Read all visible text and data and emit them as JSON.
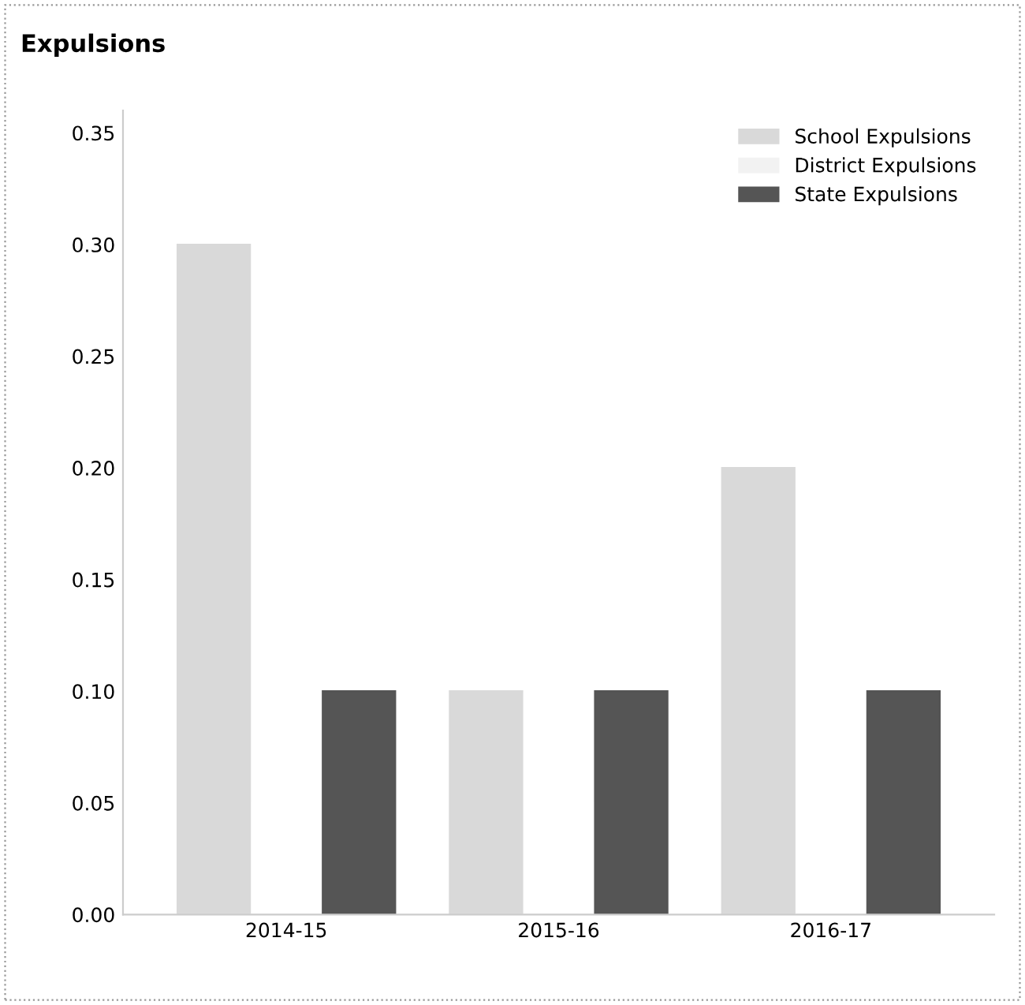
{
  "chart_data": {
    "type": "bar",
    "title": "Expulsions",
    "categories": [
      "2014-15",
      "2015-16",
      "2016-17"
    ],
    "series": [
      {
        "name": "School Expulsions",
        "color": "#d9d9d9",
        "values": [
          0.3,
          0.1,
          0.2
        ]
      },
      {
        "name": "District Expulsions",
        "color": "#f2f2f2",
        "values": [
          0,
          0,
          0
        ]
      },
      {
        "name": "State Expulsions",
        "color": "#555555",
        "values": [
          0.1,
          0.1,
          0.1
        ]
      }
    ],
    "ylim": [
      0,
      0.36
    ],
    "yticks": [
      {
        "value": 0,
        "label": "0.00"
      },
      {
        "value": 0.05,
        "label": "0.05"
      },
      {
        "value": 0.1,
        "label": "0.10"
      },
      {
        "value": 0.15,
        "label": "0.15"
      },
      {
        "value": 0.2,
        "label": "0.20"
      },
      {
        "value": 0.25,
        "label": "0.25"
      },
      {
        "value": 0.3,
        "label": "0.30"
      },
      {
        "value": 0.35,
        "label": "0.35"
      }
    ],
    "legend": "top right",
    "grid": false
  }
}
